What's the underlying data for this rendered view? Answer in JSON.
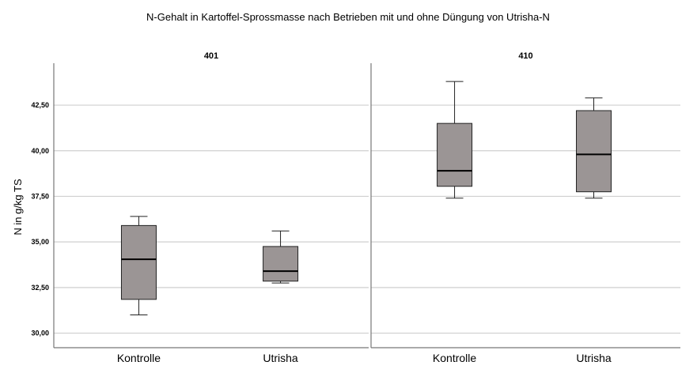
{
  "chart_data": {
    "type": "box",
    "title": "N-Gehalt in Kartoffel-Sprossmasse nach Betrieben mit und ohne Düngung von Utrisha-N",
    "ylabel": "N in g/kg TS",
    "xlabel": "",
    "ylim": [
      29.2,
      44.8
    ],
    "yticks": [
      30.0,
      32.5,
      35.0,
      37.5,
      40.0,
      42.5
    ],
    "ytick_labels": [
      "30,00",
      "32,50",
      "35,00",
      "37,50",
      "40,00",
      "42,50"
    ],
    "grid": true,
    "categories": [
      "Kontrolle",
      "Utrisha"
    ],
    "box_color": "#9b9595",
    "panels": [
      {
        "name": "401",
        "boxes": [
          {
            "category": "Kontrolle",
            "min": 31.0,
            "q1": 31.85,
            "median": 34.05,
            "q3": 35.9,
            "max": 36.4
          },
          {
            "category": "Utrisha",
            "min": 32.75,
            "q1": 32.85,
            "median": 33.4,
            "q3": 34.75,
            "max": 35.6
          }
        ]
      },
      {
        "name": "410",
        "boxes": [
          {
            "category": "Kontrolle",
            "min": 37.4,
            "q1": 38.05,
            "median": 38.9,
            "q3": 41.5,
            "max": 43.8
          },
          {
            "category": "Utrisha",
            "min": 37.4,
            "q1": 37.75,
            "median": 39.8,
            "q3": 42.2,
            "max": 42.9
          }
        ]
      }
    ]
  }
}
